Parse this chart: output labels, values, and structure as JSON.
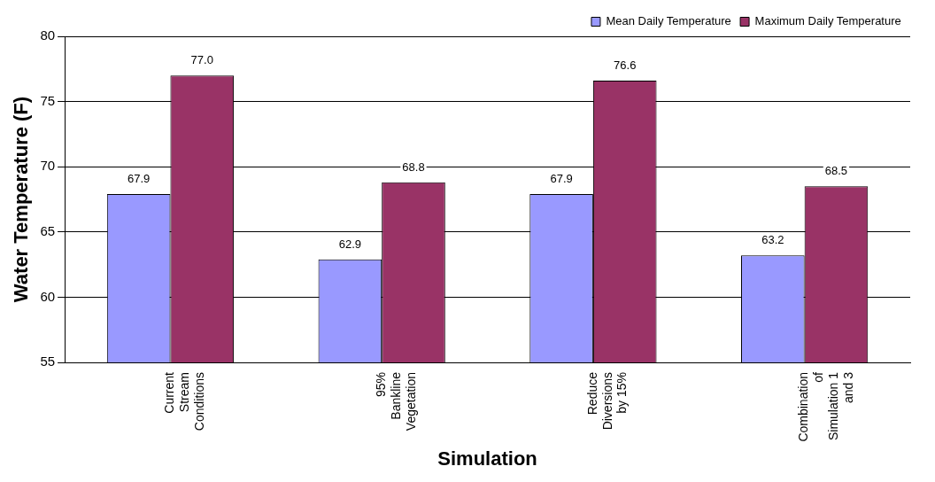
{
  "chart_data": {
    "type": "bar",
    "xlabel": "Simulation",
    "ylabel": "Water Temperature (F)",
    "categories": [
      "Current\nStream\nConditions",
      "95%\nBankline\nVegetation",
      "Reduce\nDiversions\nby 15%",
      "Combination\nof\nSimulation 1\nand 3"
    ],
    "series": [
      {
        "name": "Mean Daily Temperature",
        "color": "#9999ff",
        "values": [
          67.9,
          62.9,
          67.9,
          63.2
        ],
        "value_labels": [
          "67.9",
          "62.9",
          "67.9",
          "63.2"
        ]
      },
      {
        "name": "Maximum Daily Temperature",
        "color": "#993366",
        "values": [
          77.0,
          68.8,
          76.6,
          68.5
        ],
        "value_labels": [
          "77.0",
          "68.8",
          "76.6",
          "68.5"
        ]
      }
    ],
    "ylim": [
      55,
      80
    ],
    "yticks": [
      55,
      60,
      65,
      70,
      75,
      80
    ],
    "grid": "y",
    "legend": "top right"
  }
}
